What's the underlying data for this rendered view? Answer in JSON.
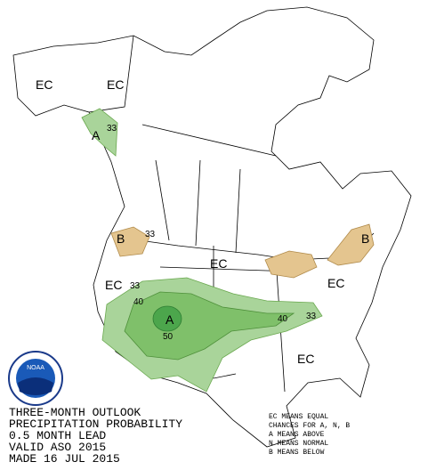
{
  "map": {
    "labels": [
      "EC",
      "EC",
      "A",
      "33",
      "B",
      "33",
      "EC",
      "B",
      "EC",
      "33",
      "40",
      "A",
      "50",
      "40",
      "33",
      "EC",
      "EC"
    ]
  },
  "logo": {
    "text": "NOAA"
  },
  "caption": {
    "lines": [
      "THREE-MONTH OUTLOOK",
      "PRECIPITATION PROBABILITY",
      "0.5 MONTH LEAD",
      "VALID ASO 2015",
      "MADE 16 JUL 2015"
    ]
  },
  "legend": {
    "lines": [
      "EC MEANS EQUAL",
      "CHANCES FOR A, N, B",
      "A MEANS ABOVE",
      "N MEANS NORMAL",
      "B MEANS BELOW"
    ]
  }
}
